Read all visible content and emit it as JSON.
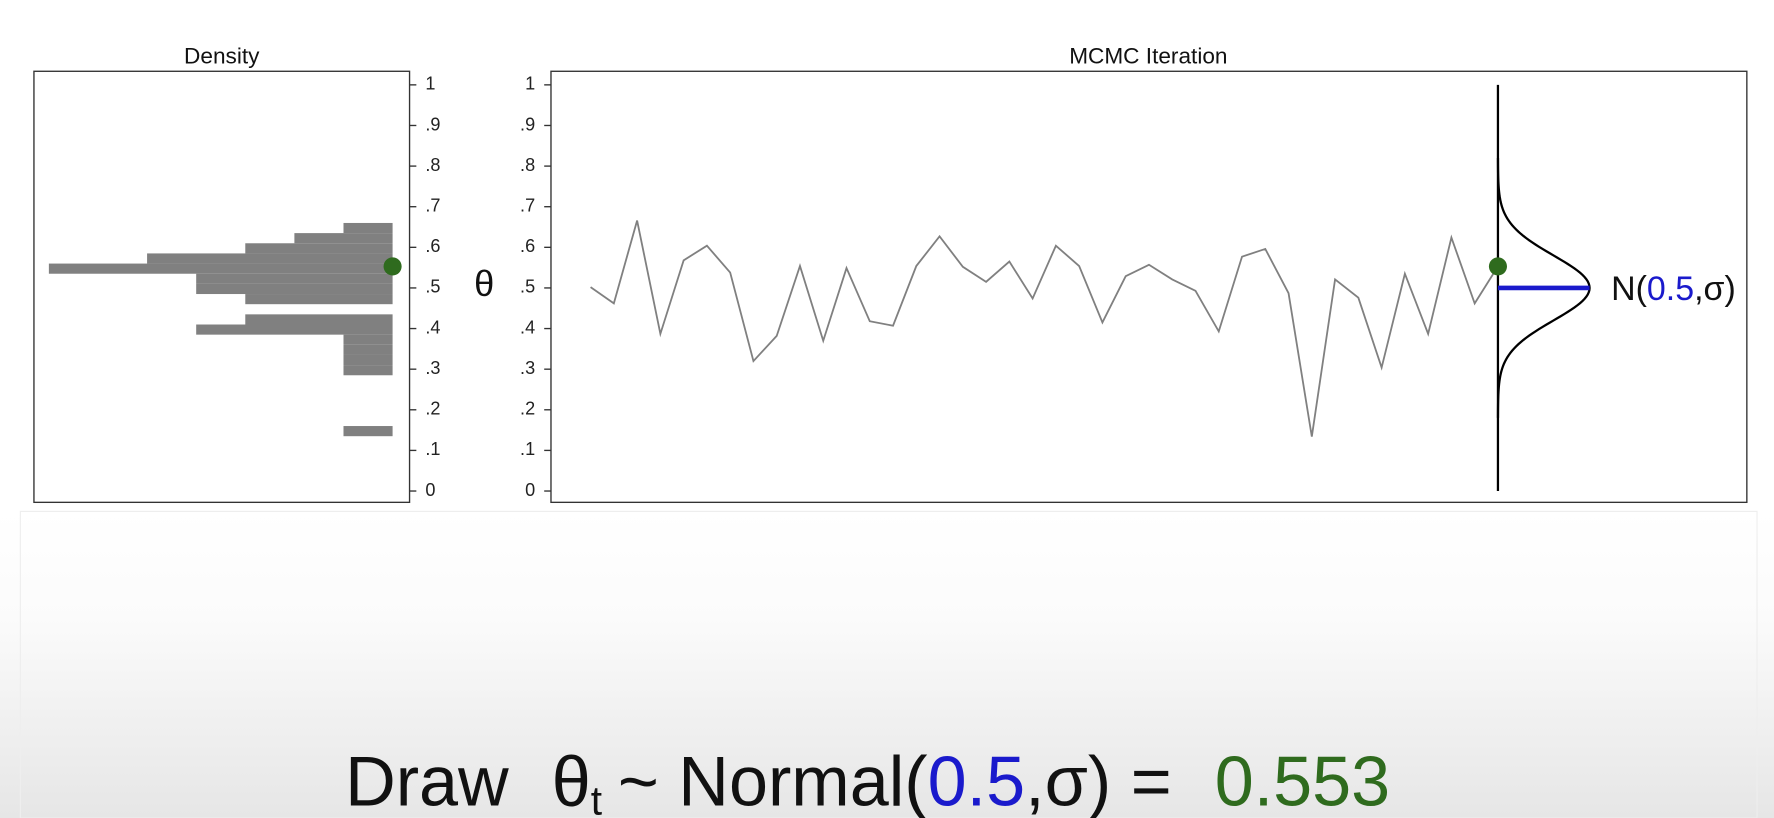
{
  "chart_data": [
    {
      "type": "histogram",
      "orientation": "horizontal",
      "title": "Density",
      "bins": [
        0.135,
        0.16,
        0.185,
        0.21,
        0.235,
        0.26,
        0.285,
        0.31,
        0.335,
        0.36,
        0.385,
        0.41,
        0.435,
        0.46,
        0.485,
        0.51,
        0.535,
        0.56,
        0.585,
        0.61,
        0.635,
        0.66
      ],
      "counts": [
        1,
        0,
        0,
        0,
        0,
        0,
        1,
        1,
        1,
        1,
        4,
        3,
        0,
        3,
        4,
        4,
        7,
        5,
        3,
        2,
        1
      ],
      "color": "#808080",
      "ylim": [
        0,
        1
      ],
      "yticks": [
        0,
        {
          "value": 0.1,
          "label": ".1"
        },
        {
          "value": 0.2,
          "label": ".2"
        },
        {
          "value": 0.3,
          "label": ".3"
        },
        {
          "value": 0.4,
          "label": ".4"
        },
        {
          "value": 0.5,
          "label": ".5"
        },
        {
          "value": 0.6,
          "label": ".6"
        },
        {
          "value": 0.7,
          "label": ".7"
        },
        {
          "value": 0.8,
          "label": ".8"
        },
        {
          "value": 0.9,
          "label": ".9"
        },
        1
      ],
      "marker_color": "#2f6b1e"
    },
    {
      "type": "line",
      "title": "MCMC Iteration",
      "ylabel": "θ",
      "values": [
        0.502,
        0.462,
        0.666,
        0.387,
        0.568,
        0.604,
        0.538,
        0.32,
        0.382,
        0.554,
        0.37,
        0.549,
        0.418,
        0.407,
        0.554,
        0.627,
        0.552,
        0.515,
        0.565,
        0.474,
        0.604,
        0.554,
        0.415,
        0.529,
        0.557,
        0.521,
        0.493,
        0.393,
        0.577,
        0.596,
        0.487,
        0.134,
        0.521,
        0.476,
        0.304,
        0.535,
        0.387,
        0.624,
        0.462,
        0.553
      ],
      "color": "#808080",
      "ylim": [
        0,
        1
      ],
      "yticks": [
        0,
        {
          "value": 0.1,
          "label": ".1"
        },
        {
          "value": 0.2,
          "label": ".2"
        },
        {
          "value": 0.3,
          "label": ".3"
        },
        {
          "value": 0.4,
          "label": ".4"
        },
        {
          "value": 0.5,
          "label": ".5"
        },
        {
          "value": 0.6,
          "label": ".6"
        },
        {
          "value": 0.7,
          "label": ".7"
        },
        {
          "value": 0.8,
          "label": ".8"
        },
        {
          "value": 0.9,
          "label": ".9"
        },
        1
      ],
      "marker_color": "#2f6b1e",
      "proposal": {
        "prefix": "N(",
        "mean": 0.5,
        "suffix": ",σ)",
        "sd": 0.08,
        "mean_color": "#1a1acc"
      }
    }
  ],
  "caption": {
    "prefix": "Draw",
    "symbol": "θ",
    "subscript": "t",
    "middle": "~ Normal(",
    "mean": 0.5,
    "suffix": ",σ) =",
    "result": 0.553
  }
}
